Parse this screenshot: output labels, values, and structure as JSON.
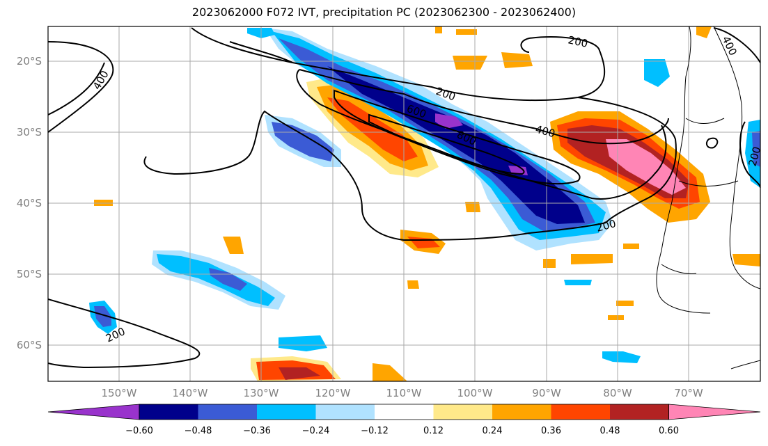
{
  "title": "2023062000 F072 IVT, precipitation PC (2023062300 - 2023062400)",
  "latitude_labels": [
    "20°S",
    "30°S",
    "40°S",
    "50°S",
    "60°S"
  ],
  "longitude_labels": [
    "150°W",
    "140°W",
    "130°W",
    "120°W",
    "110°W",
    "100°W",
    "90°W",
    "80°W",
    "70°W"
  ],
  "contour_labels": [
    "200",
    "200",
    "200",
    "200",
    "200",
    "400",
    "400",
    "400",
    "600",
    "800"
  ],
  "colorbar": {
    "tick_labels": [
      "−0.60",
      "−0.48",
      "−0.36",
      "−0.24",
      "−0.12",
      "0.12",
      "0.24",
      "0.36",
      "0.48",
      "0.60"
    ],
    "colors": [
      "#9933cc",
      "#00008b",
      "#3b5bd5",
      "#00bfff",
      "#b0e2ff",
      "#ffffff",
      "#ffe98a",
      "#ffa500",
      "#ff4500",
      "#b22222",
      "#ff85b5"
    ]
  }
}
